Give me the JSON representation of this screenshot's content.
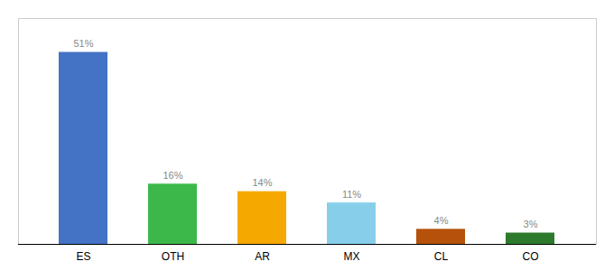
{
  "chart_data": {
    "type": "bar",
    "categories": [
      "ES",
      "OTH",
      "AR",
      "MX",
      "CL",
      "CO"
    ],
    "values": [
      51,
      16,
      14,
      11,
      4,
      3
    ],
    "value_labels": [
      "51%",
      "16%",
      "14%",
      "11%",
      "4%",
      "3%"
    ],
    "colors": [
      "#4472c4",
      "#3cb84a",
      "#f5a800",
      "#87ceeb",
      "#b5510a",
      "#2d7a2d"
    ],
    "ylim": [
      0,
      60
    ],
    "data_labels": true,
    "tick_labels": "x",
    "grid": false
  }
}
